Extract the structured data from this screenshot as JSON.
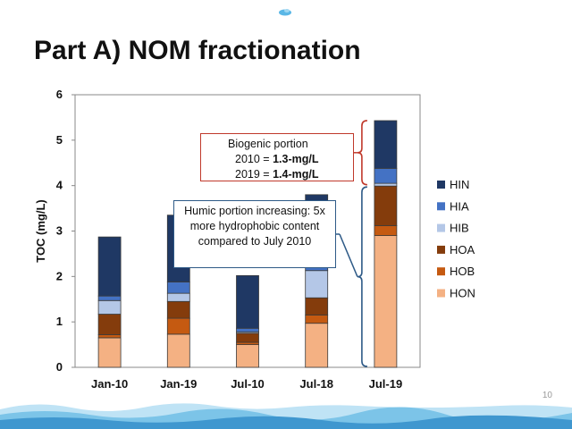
{
  "slide": {
    "title": "Part A) NOM fractionation",
    "page_number": "10"
  },
  "annotations": {
    "biogenic": {
      "line1": "Biogenic portion",
      "line2_prefix": "2010 = ",
      "line2_value": "1.3-mg/L",
      "line3_prefix": "2019 = ",
      "line3_value": "1.4-mg/L",
      "border_color": "#c0392b"
    },
    "humic": {
      "text": "Humic portion increasing: 5x more hydrophobic content compared to July 2010",
      "border_color": "#2e5a87"
    }
  },
  "chart_data": {
    "type": "bar",
    "stacked": true,
    "categories": [
      "Jan-10",
      "Jan-19",
      "Jul-10",
      "Jul-18",
      "Jul-19"
    ],
    "ylabel": "TOC (mg/L)",
    "xlabel": "",
    "ylim": [
      0,
      6
    ],
    "yticks": [
      0,
      1,
      2,
      3,
      4,
      5,
      6
    ],
    "grid": false,
    "legend_position": "right",
    "series": [
      {
        "name": "HON",
        "color": "#f4b183",
        "values": [
          0.65,
          0.73,
          0.5,
          0.97,
          2.9
        ]
      },
      {
        "name": "HOB",
        "color": "#c55a11",
        "values": [
          0.07,
          0.35,
          0.05,
          0.18,
          0.22
        ]
      },
      {
        "name": "HOA",
        "color": "#843c0c",
        "values": [
          0.45,
          0.37,
          0.2,
          0.38,
          0.87
        ]
      },
      {
        "name": "HIB",
        "color": "#b4c7e7",
        "values": [
          0.3,
          0.18,
          0.03,
          0.6,
          0.06
        ]
      },
      {
        "name": "HIA",
        "color": "#4472c4",
        "values": [
          0.1,
          0.25,
          0.08,
          0.18,
          0.33
        ]
      },
      {
        "name": "HIN",
        "color": "#1f3864",
        "values": [
          1.3,
          1.47,
          1.16,
          1.49,
          1.05
        ]
      }
    ],
    "legend_order": [
      "HIN",
      "HIA",
      "HIB",
      "HOA",
      "HOB",
      "HON"
    ]
  }
}
